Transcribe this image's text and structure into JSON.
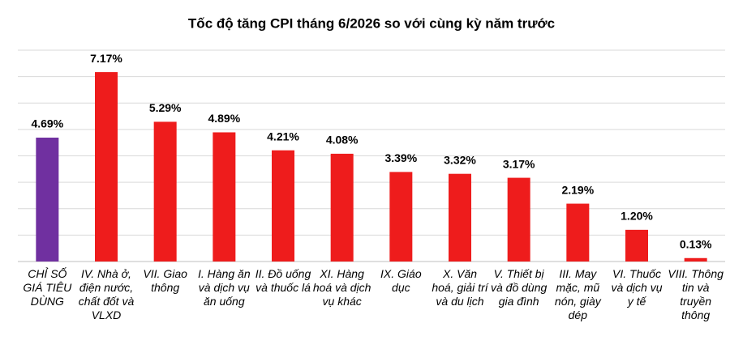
{
  "chart_data": {
    "type": "bar",
    "title": "Tốc độ tăng CPI tháng 6/2026 so với cùng kỳ năm trước",
    "categories": [
      "CHỈ SỐ GIÁ TIÊU DÙNG",
      "IV. Nhà ở, điện nước, chất đốt và VLXD",
      "VII. Giao thông",
      "I. Hàng ăn và dịch vụ ăn uống",
      "II. Đồ uống và thuốc lá",
      "XI. Hàng hoá và dịch vụ khác",
      "IX. Giáo dục",
      "X. Văn hoá, giải trí và du lịch",
      "V. Thiết bị và đồ dùng gia đình",
      "III. May mặc, mũ nón, giày dép",
      "VI. Thuốc và dịch vụ y tế",
      "VIII. Thông tin và truyền thông"
    ],
    "values": [
      4.69,
      7.17,
      5.29,
      4.89,
      4.21,
      4.08,
      3.39,
      3.32,
      3.17,
      2.19,
      1.2,
      0.13
    ],
    "value_labels": [
      "4.69%",
      "7.17%",
      "5.29%",
      "4.89%",
      "4.21%",
      "4.08%",
      "3.39%",
      "3.32%",
      "3.17%",
      "2.19%",
      "1.20%",
      "0.13%"
    ],
    "colors": [
      "#7030a0",
      "#ee1c1c",
      "#ee1c1c",
      "#ee1c1c",
      "#ee1c1c",
      "#ee1c1c",
      "#ee1c1c",
      "#ee1c1c",
      "#ee1c1c",
      "#ee1c1c",
      "#ee1c1c",
      "#ee1c1c"
    ],
    "ylim": [
      0,
      8
    ],
    "yticks": [
      0,
      1,
      2,
      3,
      4,
      5,
      6,
      7,
      8
    ],
    "grid": true
  }
}
